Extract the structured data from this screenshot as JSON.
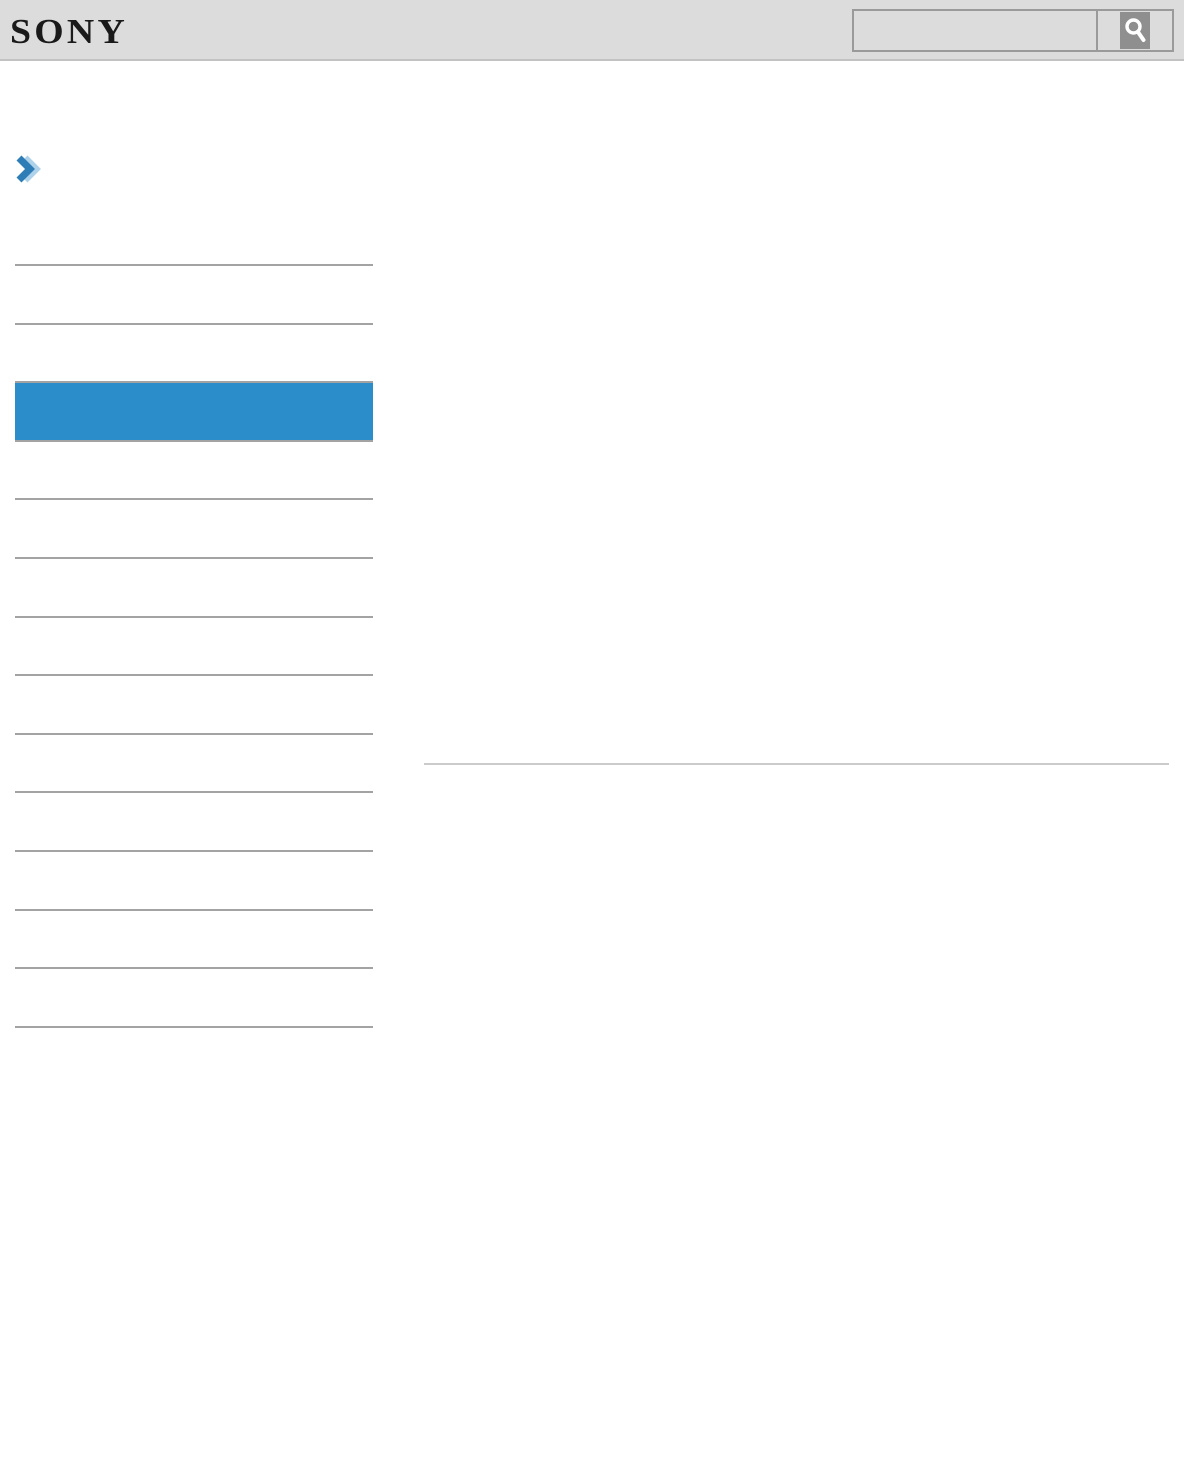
{
  "header": {
    "logo": "SONY",
    "search": {
      "value": "",
      "placeholder": "",
      "icon": "magnifier-icon"
    }
  },
  "breadcrumb": {
    "icon": "chevron-right-icon"
  },
  "sidebar": {
    "items": [
      {
        "label": "",
        "highlighted": false
      },
      {
        "label": "",
        "highlighted": false
      },
      {
        "label": "",
        "highlighted": true
      },
      {
        "label": "",
        "highlighted": false
      },
      {
        "label": "",
        "highlighted": false
      },
      {
        "label": "",
        "highlighted": false
      },
      {
        "label": "",
        "highlighted": false
      },
      {
        "label": "",
        "highlighted": false
      },
      {
        "label": "",
        "highlighted": false
      },
      {
        "label": "",
        "highlighted": false
      },
      {
        "label": "",
        "highlighted": false
      },
      {
        "label": "",
        "highlighted": false
      },
      {
        "label": "",
        "highlighted": false
      }
    ]
  },
  "colors": {
    "header_bg": "#dcdcdc",
    "header_border": "#c2c2c2",
    "search_border": "#9a9a9a",
    "icon_tile_bg": "#8f8f8f",
    "chevron_blue": "#2e7db6",
    "chevron_light": "#aed2ea",
    "sidebar_line": "#a3a3a3",
    "highlight_blue": "#2b8dca",
    "content_line": "#cbcbcb",
    "logo_color": "#1a1a1a"
  }
}
